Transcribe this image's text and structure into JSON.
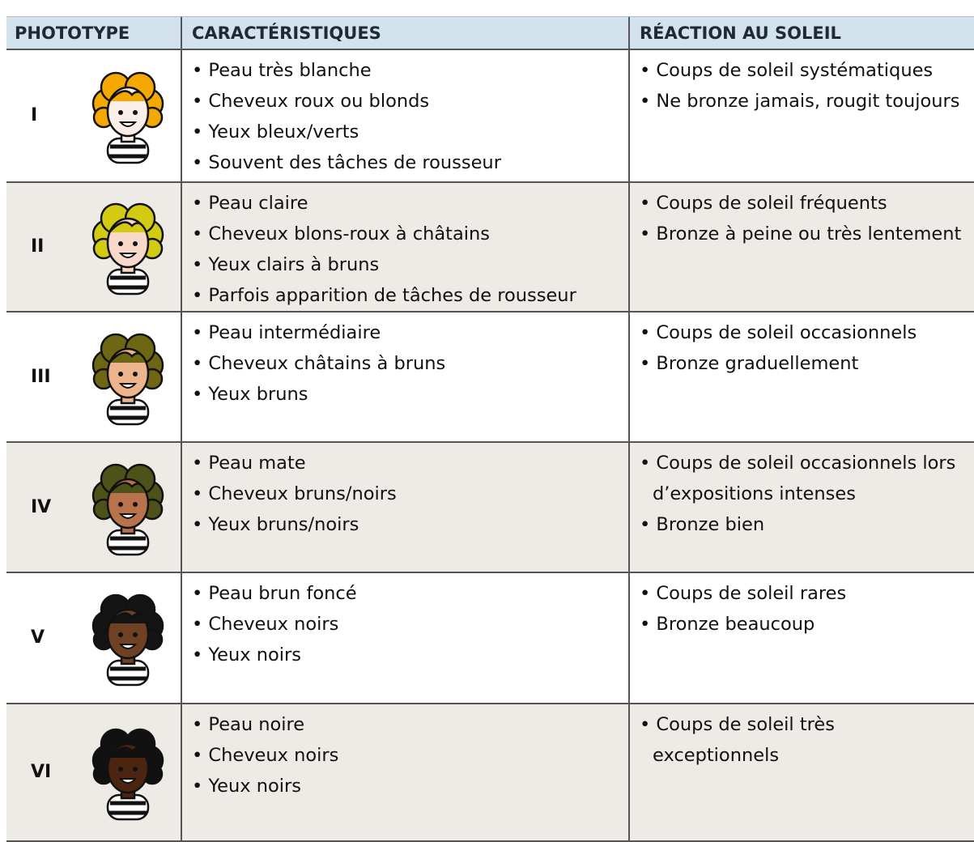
{
  "header": {
    "columns": [
      "PHOTOTYPE",
      "CARACTÉRISTIQUES",
      "RÉACTION AU SOLEIL"
    ]
  },
  "rows": [
    {
      "phototype": "I",
      "characteristics": [
        "• Peau très blanche",
        "• Cheveux roux ou blonds",
        "• Yeux bleux/verts",
        "• Souvent des tâches de rousseur"
      ],
      "reaction": [
        "• Coups de soleil systématiques",
        "• Ne bronze jamais, rougit toujours"
      ]
    },
    {
      "phototype": "II",
      "characteristics": [
        "• Peau claire",
        "• Cheveux blons-roux à châtains",
        "• Yeux clairs à bruns",
        "• Parfois apparition de tâches de rousseur"
      ],
      "reaction": [
        "• Coups de soleil fréquents",
        "• Bronze à peine ou très lentement"
      ]
    },
    {
      "phototype": "III",
      "characteristics": [
        "• Peau intermédiaire",
        "• Cheveux châtains à bruns",
        "• Yeux bruns"
      ],
      "reaction": [
        "• Coups de soleil occasionnels",
        "• Bronze graduellement"
      ]
    },
    {
      "phototype": "IV",
      "characteristics": [
        "• Peau mate",
        "• Cheveux bruns/noirs",
        "• Yeux bruns/noirs"
      ],
      "reaction": [
        "• Coups de soleil occasionnels lors d’expositions intenses",
        "• Bronze bien"
      ]
    },
    {
      "phototype": "V",
      "characteristics": [
        "• Peau brun foncé",
        "• Cheveux noirs",
        "• Yeux noirs"
      ],
      "reaction": [
        "• Coups de soleil rares",
        "• Bronze beaucoup"
      ]
    },
    {
      "phototype": "VI",
      "characteristics": [
        "• Peau noire",
        "• Cheveux noirs",
        "• Yeux noirs"
      ],
      "reaction": [
        "• Coups de soleil très exceptionnels"
      ]
    }
  ]
}
